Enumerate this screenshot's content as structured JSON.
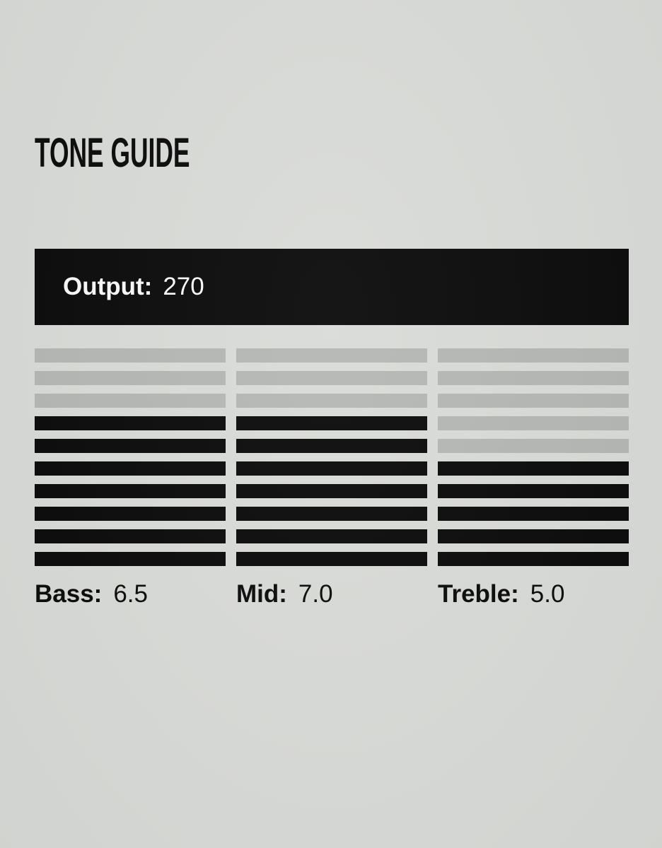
{
  "page": {
    "title": "TONE GUIDE"
  },
  "output": {
    "label": "Output:",
    "value": "270"
  },
  "tone_meters": {
    "segments_total": 10,
    "channels": [
      {
        "id": "bass",
        "label": "Bass:",
        "value": "6.5",
        "segments_filled": 7
      },
      {
        "id": "mid",
        "label": "Mid:",
        "value": "7.0",
        "segments_filled": 7
      },
      {
        "id": "treble",
        "label": "Treble:",
        "value": "5.0",
        "segments_filled": 5
      }
    ]
  },
  "colors": {
    "background": "#d9dbd8",
    "ink_black": "#0a0a0a",
    "segment_empty": "#b5b7b5",
    "output_text": "#fafafa"
  }
}
